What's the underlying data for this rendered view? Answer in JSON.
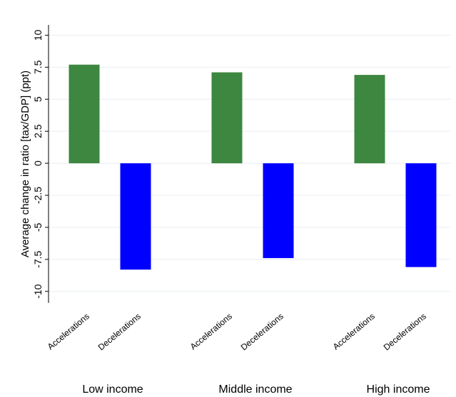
{
  "chart_data": {
    "type": "grouped-bar",
    "y_label": "Average change in ratio [tax/GDP] (ppt)",
    "categories": [
      "Low income",
      "Middle income",
      "High income"
    ],
    "series": [
      {
        "name": "Accelerations",
        "color": "#3d8740",
        "values": [
          7.7,
          7.1,
          6.9
        ]
      },
      {
        "name": "Decelerations",
        "color": "#0000ff",
        "values": [
          -8.3,
          -7.4,
          -8.1
        ]
      }
    ],
    "ylim": [
      -10.9,
      10.8
    ],
    "yticks": [
      -10,
      -7.5,
      -5,
      -2.5,
      0,
      2.5,
      5,
      7.5,
      10
    ],
    "grid": true
  }
}
